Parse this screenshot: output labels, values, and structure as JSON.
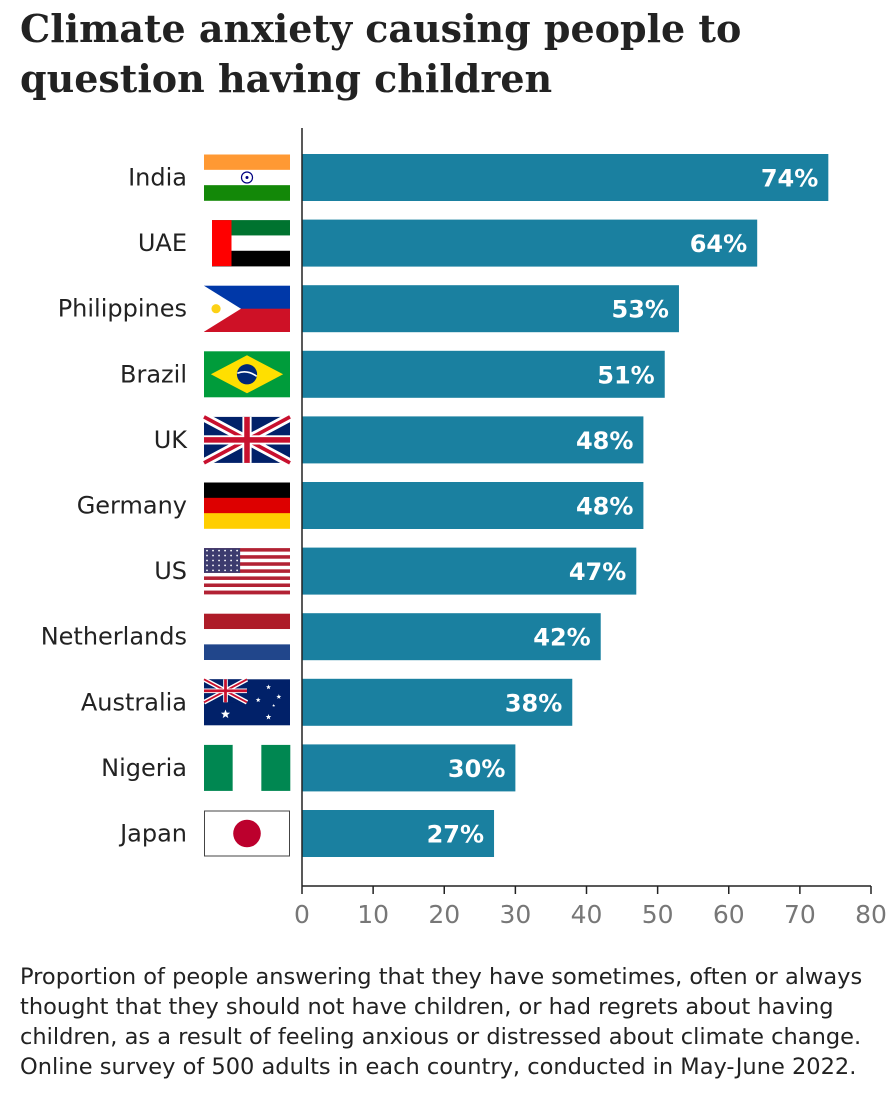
{
  "title": "Climate anxiety causing people to question having children",
  "note": "Proportion of people answering that they have sometimes, often or always thought that they should not have children, or had regrets about having children, as a result of feeling anxious or distressed about climate change. Online survey of 500 adults in each country, conducted in May-June 2022.",
  "colors": {
    "bar": "#1a80a0",
    "text": "#222222",
    "tick": "#777777",
    "axis": "#222222",
    "bar_label": "#ffffff"
  },
  "chart_data": {
    "type": "bar",
    "orientation": "horizontal",
    "categories": [
      "India",
      "UAE",
      "Philippines",
      "Brazil",
      "UK",
      "Germany",
      "US",
      "Netherlands",
      "Australia",
      "Nigeria",
      "Japan"
    ],
    "values": [
      74,
      64,
      53,
      51,
      48,
      48,
      47,
      42,
      38,
      30,
      27
    ],
    "data_labels": [
      "74%",
      "64%",
      "53%",
      "51%",
      "48%",
      "48%",
      "47%",
      "42%",
      "38%",
      "30%",
      "27%"
    ],
    "flag_icons": [
      "india-flag-icon",
      "uae-flag-icon",
      "philippines-flag-icon",
      "brazil-flag-icon",
      "uk-flag-icon",
      "germany-flag-icon",
      "us-flag-icon",
      "netherlands-flag-icon",
      "australia-flag-icon",
      "nigeria-flag-icon",
      "japan-flag-icon"
    ],
    "xlim": [
      0,
      80
    ],
    "xticks": [
      0,
      10,
      20,
      30,
      40,
      50,
      60,
      70,
      80
    ],
    "grid": false,
    "legend": "none"
  }
}
